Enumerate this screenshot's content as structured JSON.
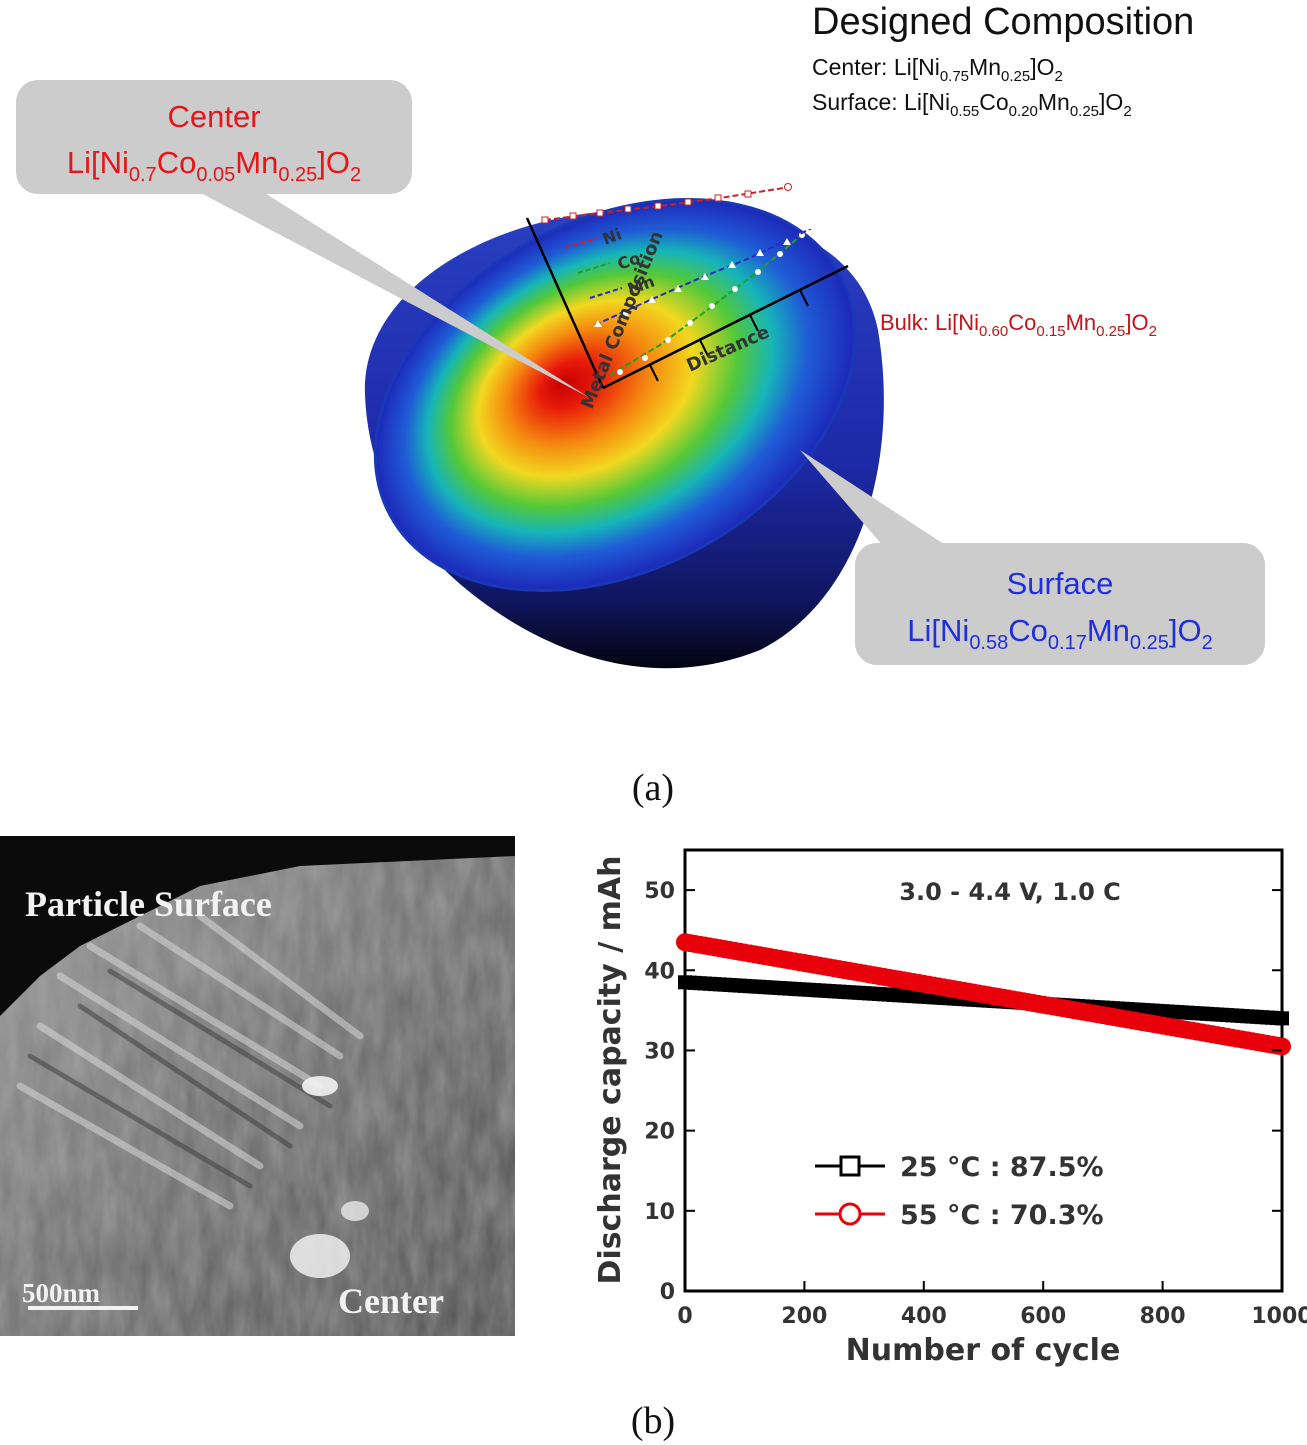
{
  "designed": {
    "title": "Designed Composition",
    "center": [
      "Center: Li[Ni",
      "0.75",
      "Mn",
      "0.25",
      "]O",
      "2"
    ],
    "surface": [
      "Surface: Li[Ni",
      "0.55",
      "Co",
      "0.20",
      "Mn",
      "0.25",
      "]O",
      "2"
    ]
  },
  "callout_center": {
    "label": "Center",
    "formula": [
      "Li[Ni",
      "0.7",
      "Co",
      "0.05",
      "Mn",
      "0.25",
      "]O",
      "2"
    ]
  },
  "callout_surface": {
    "label": "Surface",
    "formula": [
      "Li[Ni",
      "0.58",
      "Co",
      "0.17",
      "Mn",
      "0.25",
      "]O",
      "2"
    ]
  },
  "bulk": [
    "Bulk: Li[Ni",
    "0.60",
    "Co",
    "0.15",
    "Mn",
    "0.25",
    "]O",
    "2"
  ],
  "inset": {
    "ylabel": "Metal Composition",
    "xlabel": "Distance",
    "legend": [
      "Ni",
      "Co",
      "Mn"
    ]
  },
  "caption_a": "(a)",
  "caption_b": "(b)",
  "sem": {
    "top_label": "Particle  Surface",
    "scale_label": "500nm",
    "center_label": "Center"
  },
  "chart_data": {
    "type": "scatter",
    "annotation": "3.0 - 4.4 V, 1.0 C",
    "xlabel": "Number of cycle",
    "ylabel": "Discharge capacity / mAh",
    "xlim": [
      0,
      1000
    ],
    "ylim": [
      0,
      55
    ],
    "xticks": [
      0,
      200,
      400,
      600,
      800,
      1000
    ],
    "yticks": [
      0,
      10,
      20,
      30,
      40,
      50
    ],
    "series": [
      {
        "name": "25 °C : 87.5%",
        "color": "#000000",
        "marker": "square",
        "x": [
          0,
          1000
        ],
        "y": [
          38.5,
          34
        ]
      },
      {
        "name": "55 °C : 70.3%",
        "color": "#e8000b",
        "marker": "circle",
        "x": [
          0,
          1000
        ],
        "y": [
          43.5,
          30.5
        ]
      }
    ],
    "legend_position": "lower-left",
    "grid": false
  }
}
